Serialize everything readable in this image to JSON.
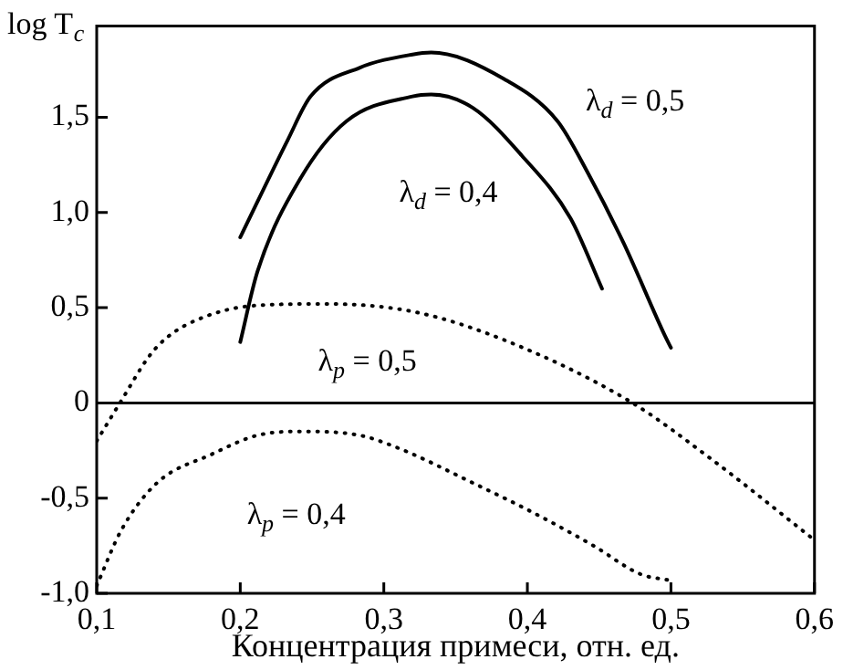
{
  "chart_data": {
    "type": "line",
    "xlabel": "Концентрация примеси, отн. ед.",
    "ylabel": "log T$_{c}$",
    "xlim": [
      0.1,
      0.6
    ],
    "ylim": [
      -1.0,
      1.98
    ],
    "xticks": [
      {
        "value": 0.1,
        "label": "0,1"
      },
      {
        "value": 0.2,
        "label": "0,2"
      },
      {
        "value": 0.3,
        "label": "0,3"
      },
      {
        "value": 0.4,
        "label": "0,4"
      },
      {
        "value": 0.5,
        "label": "0,5"
      },
      {
        "value": 0.6,
        "label": "0,6"
      }
    ],
    "yticks": [
      {
        "value": -1.0,
        "label": "-1,0"
      },
      {
        "value": -0.5,
        "label": "-0,5"
      },
      0,
      {
        "value": 0.5,
        "label": "0,5"
      },
      {
        "value": 1.0,
        "label": "1,0"
      },
      {
        "value": 1.5,
        "label": "1,5"
      }
    ],
    "grid": false,
    "legend": false,
    "marker": "none",
    "series": [
      {
        "name": "λ$_{d}$ = 0,5",
        "color": "#000000",
        "line_style": "solid",
        "x": [
          0.2,
          0.233,
          0.249,
          0.283,
          0.32,
          0.333,
          0.384,
          0.421,
          0.442,
          0.467,
          0.496,
          0.5
        ],
        "values": [
          0.87,
          1.38,
          1.61,
          1.76,
          1.83,
          1.84,
          1.7,
          1.48,
          1.21,
          0.84,
          0.35,
          0.29
        ]
      },
      {
        "name": "λ$_{d}$ = 0,4",
        "color": "#000000",
        "line_style": "solid",
        "x": [
          0.2,
          0.212,
          0.242,
          0.274,
          0.32,
          0.333,
          0.362,
          0.396,
          0.43,
          0.452
        ],
        "values": [
          0.32,
          0.69,
          1.18,
          1.48,
          1.61,
          1.62,
          1.55,
          1.3,
          0.97,
          0.6
        ]
      },
      {
        "name": "λ$_{p}$ = 0,5",
        "color": "#000000",
        "line_style": "dotted",
        "x": [
          0.1,
          0.117,
          0.137,
          0.15,
          0.171,
          0.208,
          0.258,
          0.32,
          0.384,
          0.471,
          0.529,
          0.6
        ],
        "values": [
          -0.2,
          0.01,
          0.25,
          0.35,
          0.44,
          0.51,
          0.52,
          0.48,
          0.33,
          0.01,
          -0.3,
          -0.72
        ]
      },
      {
        "name": "λ$_{p}$ = 0,4",
        "color": "#000000",
        "line_style": "dotted",
        "x": [
          0.1,
          0.117,
          0.142,
          0.18,
          0.212,
          0.242,
          0.283,
          0.311,
          0.362,
          0.405,
          0.446,
          0.479,
          0.498
        ],
        "values": [
          -0.96,
          -0.67,
          -0.42,
          -0.27,
          -0.17,
          -0.15,
          -0.17,
          -0.24,
          -0.42,
          -0.58,
          -0.75,
          -0.9,
          -0.93
        ]
      }
    ],
    "ref_lines": [
      {
        "axis": "y",
        "value": 0,
        "color": "#000000",
        "line_style": "solid"
      }
    ]
  }
}
